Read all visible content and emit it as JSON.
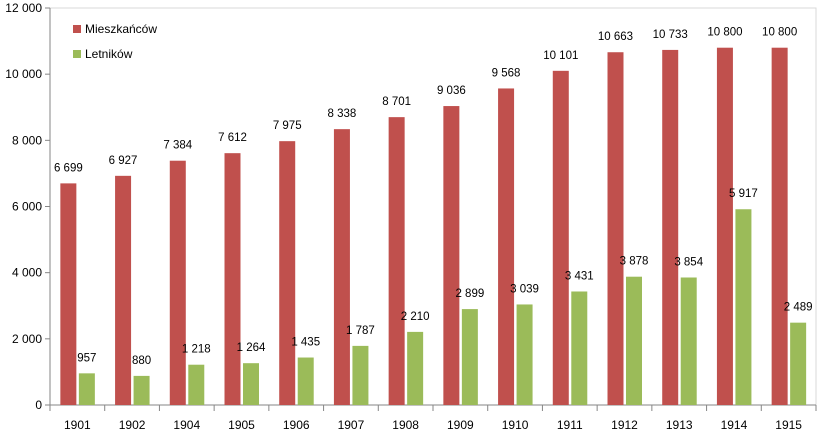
{
  "chart_data": {
    "type": "bar",
    "title": "",
    "xlabel": "",
    "ylabel": "",
    "categories": [
      "1901",
      "1902",
      "1904",
      "1905",
      "1906",
      "1907",
      "1908",
      "1909",
      "1910",
      "1911",
      "1912",
      "1913",
      "1914",
      "1915"
    ],
    "series": [
      {
        "name": "Mieszkańców",
        "color": "#c0504d",
        "values": [
          6699,
          6927,
          7384,
          7612,
          7975,
          8338,
          8701,
          9036,
          9568,
          10101,
          10663,
          10733,
          10800,
          10800
        ],
        "labels": [
          "6 699",
          "6 927",
          "7 384",
          "7 612",
          "7 975",
          "8 338",
          "8 701",
          "9 036",
          "9 568",
          "10 101",
          "10 663",
          "10 733",
          "10 800",
          "10 800"
        ]
      },
      {
        "name": "Letników",
        "color": "#9bbb59",
        "values": [
          957,
          880,
          1218,
          1264,
          1435,
          1787,
          2210,
          2899,
          3039,
          3431,
          3878,
          3854,
          5917,
          2489
        ],
        "labels": [
          "957",
          "880",
          "1 218",
          "1 264",
          "1 435",
          "1 787",
          "2 210",
          "2 899",
          "3 039",
          "3 431",
          "3 878",
          "3 854",
          "5 917",
          "2 489"
        ]
      }
    ],
    "ylim": [
      0,
      12000
    ],
    "yticks": [
      0,
      2000,
      4000,
      6000,
      8000,
      10000,
      12000
    ],
    "ytick_labels": [
      "0",
      "2 000",
      "4 000",
      "6 000",
      "8 000",
      "10 000",
      "12 000"
    ],
    "grid": false,
    "legend": "top-left"
  }
}
